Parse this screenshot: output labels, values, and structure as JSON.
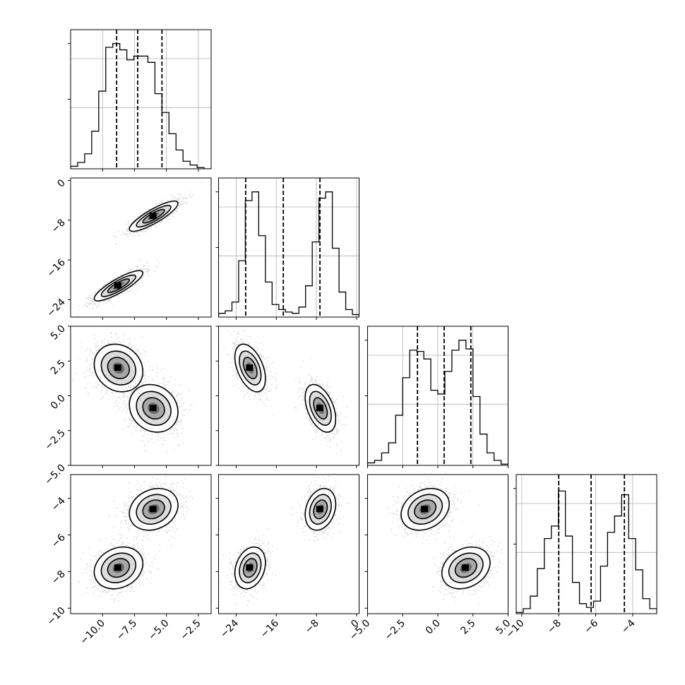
{
  "chart_data": {
    "type": "corner",
    "dimensions": 4,
    "axes": [
      {
        "lim": [
          -12.5,
          -1.5
        ],
        "ticks": [
          -10.0,
          -7.5,
          -5.0,
          -2.5
        ],
        "tick_labels": [
          "−10.0",
          "−7.5",
          "−5.0",
          "−2.5"
        ],
        "quantiles": [
          -8.9,
          -7.25,
          -5.35
        ]
      },
      {
        "lim": [
          -27.5,
          0.5
        ],
        "ticks": [
          -24,
          -16,
          -8,
          0
        ],
        "tick_labels": [
          "−24",
          "−16",
          "−8",
          "0"
        ],
        "quantiles": [
          -22.1,
          -14.6,
          -7.3
        ]
      },
      {
        "lim": [
          -5.0,
          5.0
        ],
        "ticks": [
          -5.0,
          -2.5,
          0.0,
          2.5,
          5.0
        ],
        "tick_labels": [
          "−5.0",
          "−2.5",
          "0.0",
          "2.5",
          "5.0"
        ],
        "quantiles": [
          -1.45,
          0.45,
          2.35
        ]
      },
      {
        "lim": [
          -10.3,
          -2.7
        ],
        "ticks": [
          -10,
          -8,
          -6,
          -4
        ],
        "tick_labels": [
          "−10",
          "−8",
          "−6",
          "−4"
        ],
        "quantiles": [
          -8.0,
          -6.25,
          -4.45
        ]
      }
    ],
    "histograms": [
      [
        0.02,
        0.05,
        0.12,
        0.3,
        0.62,
        0.97,
        1.0,
        0.95,
        0.87,
        0.9,
        0.9,
        0.85,
        0.6,
        0.45,
        0.28,
        0.15,
        0.06,
        0.03,
        0.01,
        0.0
      ],
      [
        0.03,
        0.05,
        0.12,
        0.45,
        0.93,
        1.0,
        0.65,
        0.28,
        0.1,
        0.06,
        0.04,
        0.03,
        0.08,
        0.25,
        0.6,
        0.95,
        1.0,
        0.55,
        0.2,
        0.06,
        0.02
      ],
      [
        0.02,
        0.04,
        0.1,
        0.18,
        0.4,
        0.7,
        0.92,
        0.91,
        0.85,
        0.6,
        0.57,
        0.75,
        0.92,
        1.0,
        0.93,
        0.55,
        0.25,
        0.1,
        0.04,
        0.01
      ],
      [
        0.01,
        0.04,
        0.14,
        0.36,
        0.6,
        0.7,
        0.98,
        0.62,
        0.25,
        0.08,
        0.05,
        0.1,
        0.38,
        0.65,
        0.78,
        0.95,
        0.6,
        0.35,
        0.12,
        0.04
      ]
    ],
    "modes": [
      {
        "weight": 0.5,
        "mean": [
          -8.75,
          -21.2,
          2.0,
          -7.8
        ],
        "std": [
          1.0,
          1.6,
          0.9,
          0.6
        ]
      },
      {
        "weight": 0.5,
        "mean": [
          -6.0,
          -7.2,
          -0.9,
          -4.6
        ],
        "std": [
          1.0,
          1.6,
          0.9,
          0.6
        ]
      }
    ],
    "correlations": {
      "1-0": 0.85,
      "2-0": -0.15,
      "2-1": -0.45,
      "3-0": 0.2,
      "3-1": 0.25,
      "3-2": 0.25
    }
  }
}
